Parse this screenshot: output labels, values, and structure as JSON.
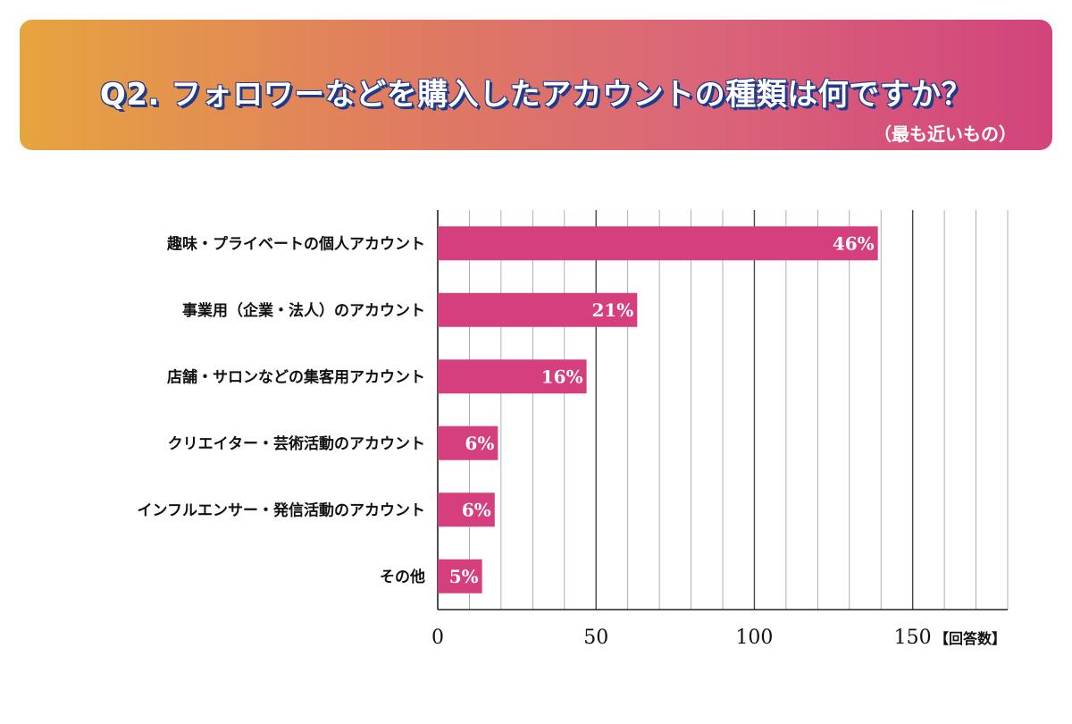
{
  "header": {
    "title": "Q2. フォロワーなどを購入したアカウントの種類は何ですか？",
    "subtitle": "（最も近いもの）"
  },
  "chart_data": {
    "type": "bar",
    "orientation": "horizontal",
    "categories": [
      "趣味・プライベートの個人アカウント",
      "事業用（企業・法人）のアカウント",
      "店舗・サロンなどの集客用アカウント",
      "クリエイター・芸術活動のアカウント",
      "インフルエンサー・発信活動のアカウント",
      "その他"
    ],
    "values": [
      139,
      63,
      47,
      19,
      18,
      14
    ],
    "data_labels": [
      "46%",
      "21%",
      "16%",
      "6%",
      "6%",
      "5%"
    ],
    "xlim": [
      0,
      180
    ],
    "x_ticks": [
      "0",
      "50",
      "100",
      "150"
    ],
    "x_unit": "【回答数】",
    "grid": true,
    "bar_color": "#d63f7e"
  }
}
